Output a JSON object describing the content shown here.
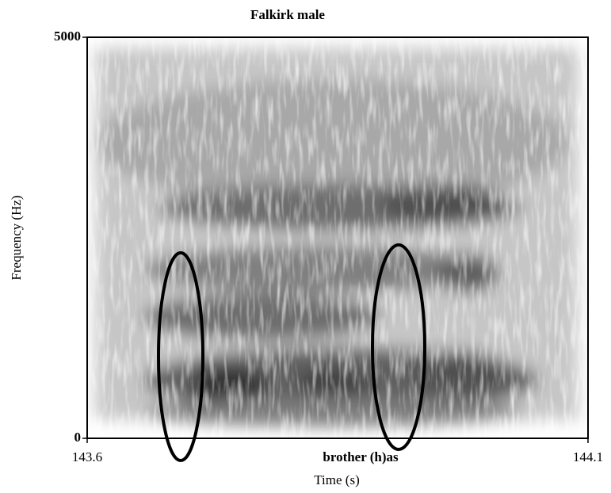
{
  "chart_data": {
    "type": "spectrogram",
    "title": "Falkirk male",
    "x_label": "Time (s)",
    "y_label": "Frequency (Hz)",
    "annotation": "brother (h)as",
    "xlim": [
      143.6,
      144.1
    ],
    "xticks": [
      143.6,
      144.1
    ],
    "ylim": [
      0,
      5000
    ],
    "yticks": [
      0,
      5000
    ]
  }
}
